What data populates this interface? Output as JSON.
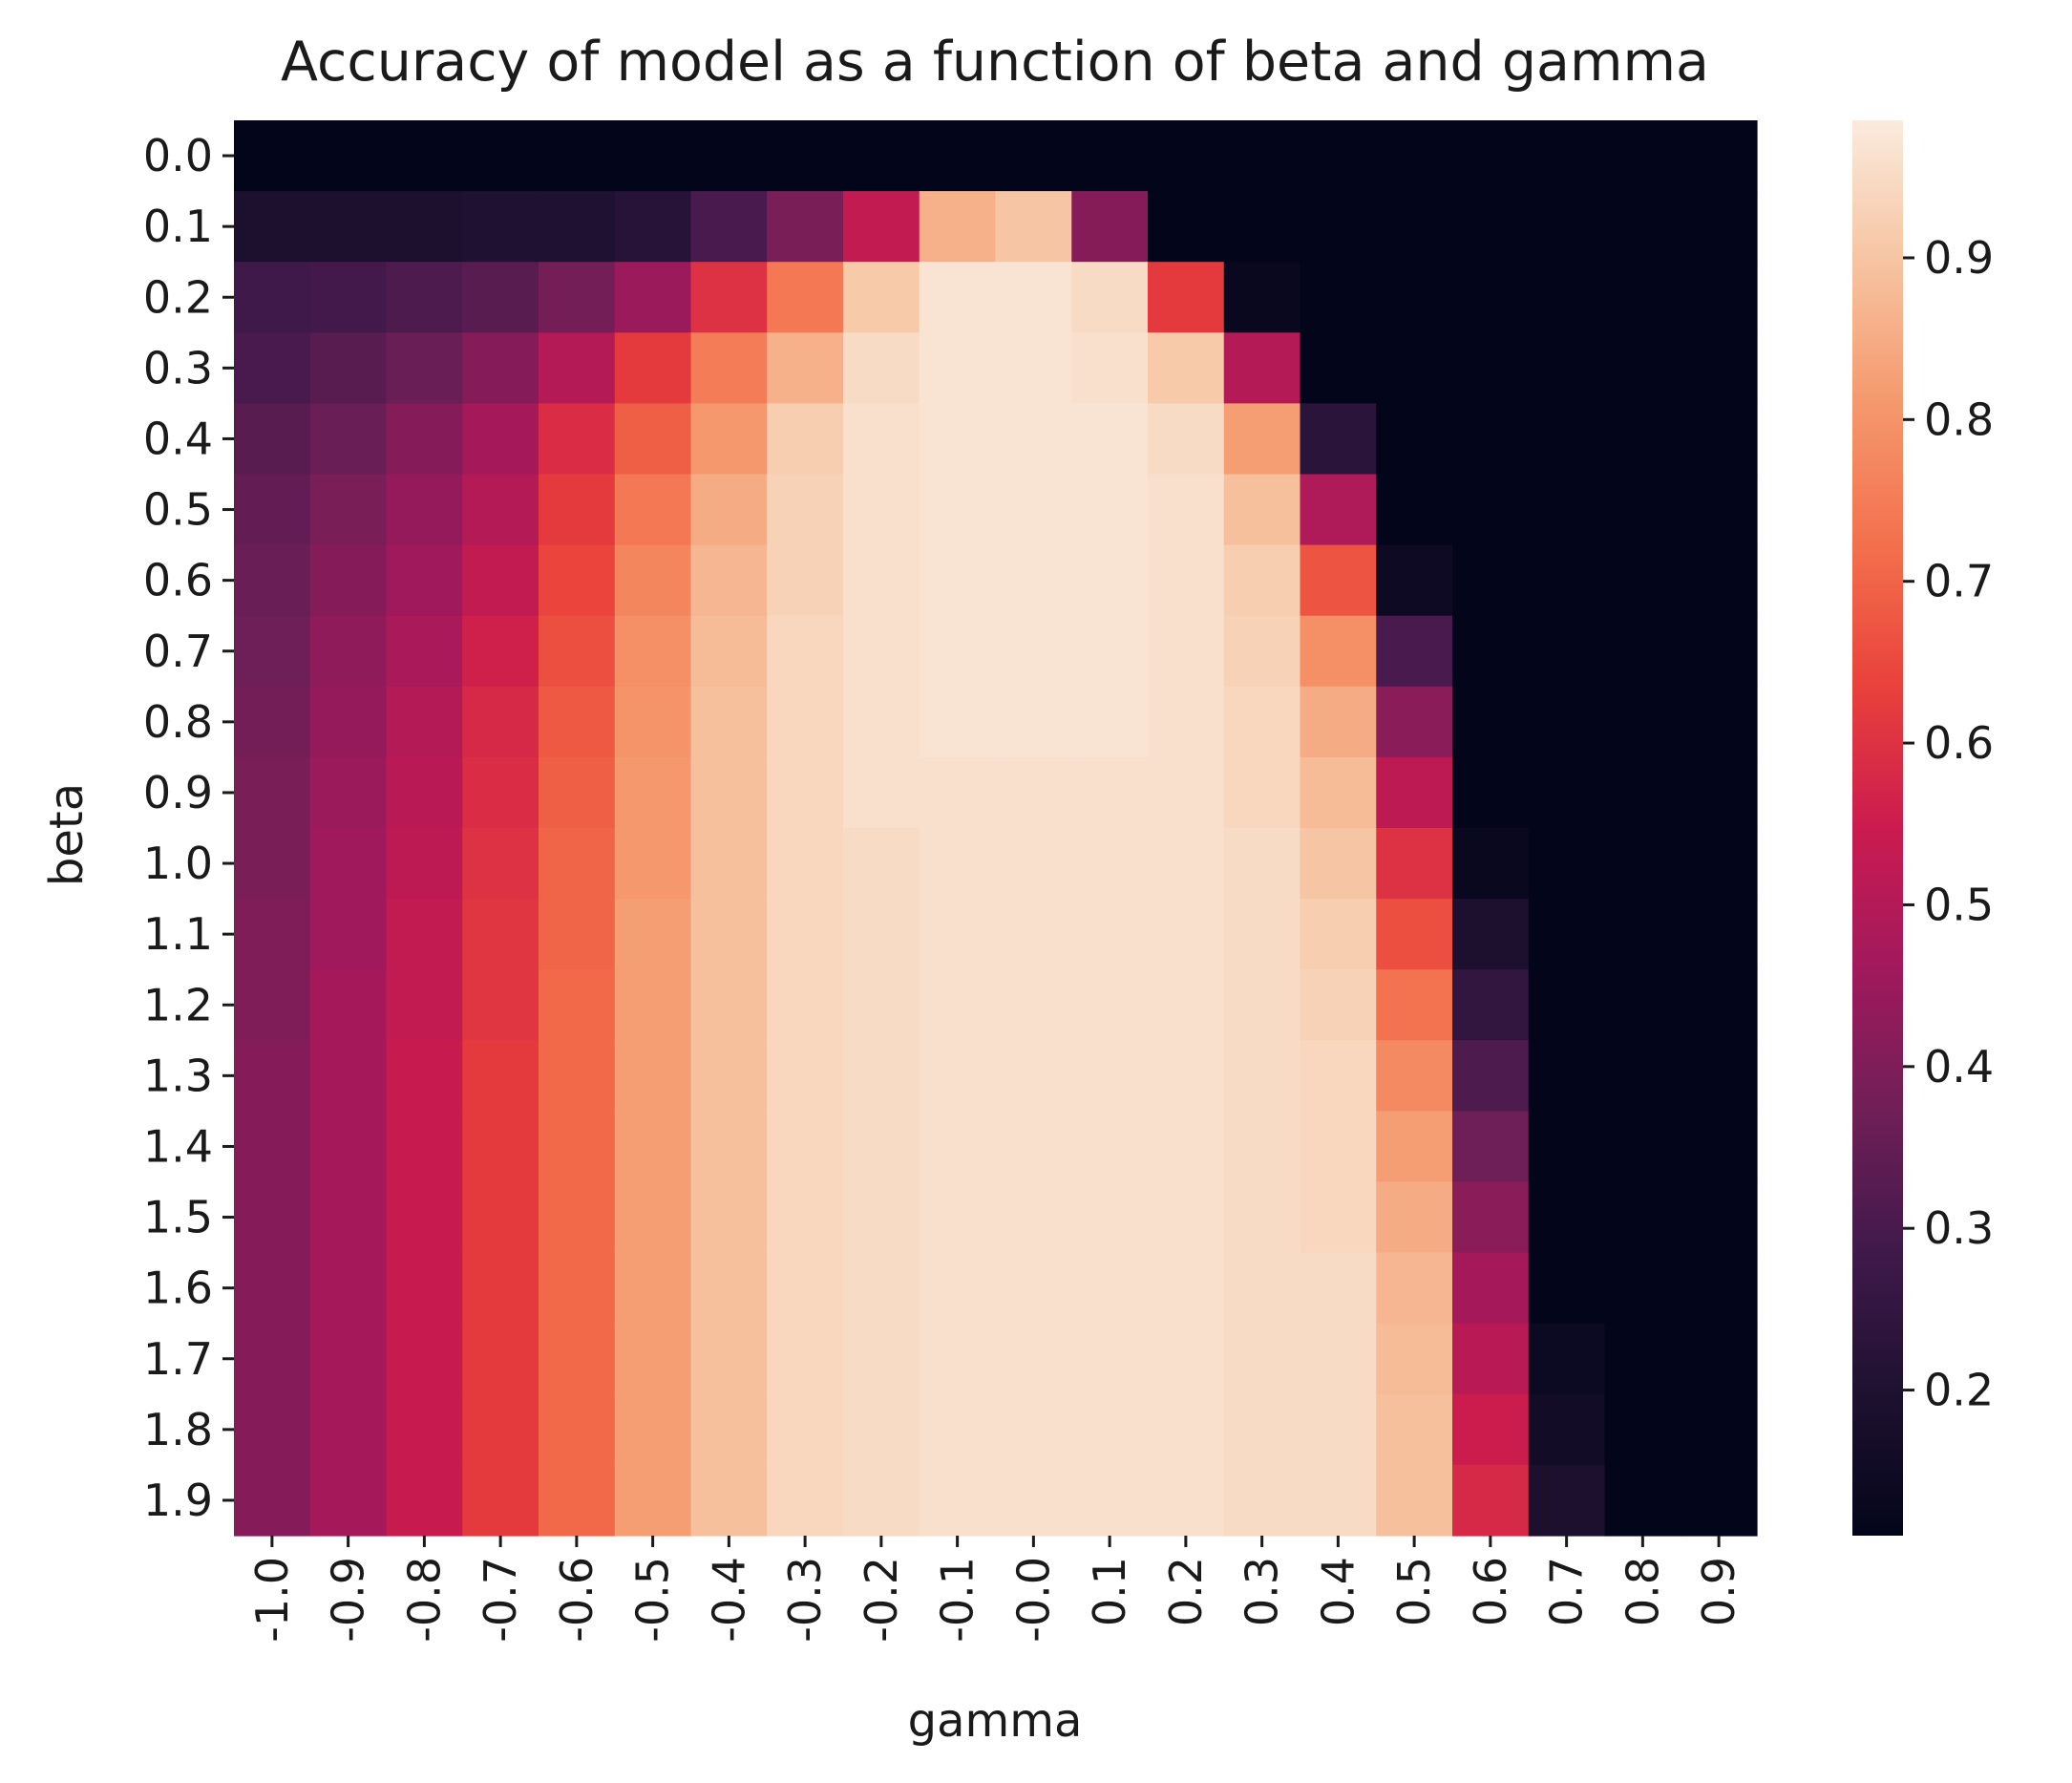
{
  "chart_data": {
    "type": "heatmap",
    "title": "Accuracy of model as a function of beta and gamma",
    "xlabel": "gamma",
    "ylabel": "beta",
    "x": [
      "-1.0",
      "-0.9",
      "-0.8",
      "-0.7",
      "-0.6",
      "-0.5",
      "-0.4",
      "-0.3",
      "-0.2",
      "-0.1",
      "-0.0",
      "0.1",
      "0.2",
      "0.3",
      "0.4",
      "0.5",
      "0.6",
      "0.7",
      "0.8",
      "0.9"
    ],
    "y": [
      "0.0",
      "0.1",
      "0.2",
      "0.3",
      "0.4",
      "0.5",
      "0.6",
      "0.7",
      "0.8",
      "0.9",
      "1.0",
      "1.1",
      "1.2",
      "1.3",
      "1.4",
      "1.5",
      "1.6",
      "1.7",
      "1.8",
      "1.9"
    ],
    "values": [
      [
        0.11,
        0.11,
        0.11,
        0.11,
        0.11,
        0.11,
        0.11,
        0.11,
        0.11,
        0.11,
        0.11,
        0.11,
        0.11,
        0.11,
        0.11,
        0.11,
        0.11,
        0.11,
        0.11,
        0.11
      ],
      [
        0.19,
        0.19,
        0.19,
        0.2,
        0.2,
        0.22,
        0.3,
        0.39,
        0.53,
        0.86,
        0.9,
        0.41,
        0.11,
        0.11,
        0.11,
        0.11,
        0.11,
        0.11,
        0.11,
        0.11
      ],
      [
        0.28,
        0.29,
        0.31,
        0.33,
        0.38,
        0.45,
        0.6,
        0.74,
        0.91,
        0.97,
        0.97,
        0.95,
        0.62,
        0.13,
        0.11,
        0.11,
        0.11,
        0.11,
        0.11,
        0.11
      ],
      [
        0.3,
        0.33,
        0.36,
        0.41,
        0.5,
        0.62,
        0.75,
        0.86,
        0.95,
        0.97,
        0.97,
        0.96,
        0.91,
        0.5,
        0.11,
        0.11,
        0.11,
        0.11,
        0.11,
        0.11
      ],
      [
        0.33,
        0.36,
        0.41,
        0.47,
        0.59,
        0.69,
        0.81,
        0.92,
        0.96,
        0.97,
        0.97,
        0.97,
        0.95,
        0.82,
        0.23,
        0.11,
        0.11,
        0.11,
        0.11,
        0.11
      ],
      [
        0.35,
        0.39,
        0.44,
        0.5,
        0.62,
        0.74,
        0.85,
        0.93,
        0.96,
        0.97,
        0.97,
        0.97,
        0.96,
        0.89,
        0.49,
        0.11,
        0.11,
        0.11,
        0.11,
        0.11
      ],
      [
        0.36,
        0.41,
        0.46,
        0.53,
        0.64,
        0.77,
        0.87,
        0.93,
        0.96,
        0.97,
        0.97,
        0.97,
        0.96,
        0.92,
        0.67,
        0.15,
        0.11,
        0.11,
        0.11,
        0.11
      ],
      [
        0.37,
        0.43,
        0.48,
        0.56,
        0.66,
        0.79,
        0.88,
        0.94,
        0.96,
        0.97,
        0.97,
        0.97,
        0.96,
        0.93,
        0.79,
        0.3,
        0.11,
        0.11,
        0.11,
        0.11
      ],
      [
        0.38,
        0.44,
        0.5,
        0.58,
        0.68,
        0.8,
        0.89,
        0.94,
        0.96,
        0.97,
        0.97,
        0.97,
        0.96,
        0.94,
        0.85,
        0.42,
        0.11,
        0.11,
        0.11,
        0.11
      ],
      [
        0.39,
        0.45,
        0.51,
        0.59,
        0.69,
        0.81,
        0.89,
        0.94,
        0.96,
        0.96,
        0.96,
        0.96,
        0.96,
        0.94,
        0.88,
        0.52,
        0.11,
        0.11,
        0.11,
        0.11
      ],
      [
        0.39,
        0.46,
        0.52,
        0.6,
        0.7,
        0.81,
        0.89,
        0.94,
        0.95,
        0.96,
        0.96,
        0.96,
        0.96,
        0.95,
        0.9,
        0.6,
        0.13,
        0.11,
        0.11,
        0.11
      ],
      [
        0.4,
        0.46,
        0.53,
        0.61,
        0.7,
        0.82,
        0.89,
        0.94,
        0.95,
        0.96,
        0.96,
        0.96,
        0.96,
        0.95,
        0.92,
        0.66,
        0.19,
        0.11,
        0.11,
        0.11
      ],
      [
        0.4,
        0.47,
        0.53,
        0.61,
        0.71,
        0.82,
        0.89,
        0.94,
        0.95,
        0.96,
        0.96,
        0.96,
        0.96,
        0.95,
        0.93,
        0.73,
        0.25,
        0.11,
        0.11,
        0.11
      ],
      [
        0.41,
        0.47,
        0.54,
        0.62,
        0.71,
        0.82,
        0.89,
        0.94,
        0.95,
        0.96,
        0.96,
        0.96,
        0.96,
        0.95,
        0.94,
        0.78,
        0.31,
        0.11,
        0.11,
        0.11
      ],
      [
        0.41,
        0.47,
        0.54,
        0.62,
        0.71,
        0.82,
        0.89,
        0.94,
        0.95,
        0.96,
        0.96,
        0.96,
        0.96,
        0.95,
        0.94,
        0.82,
        0.37,
        0.11,
        0.11,
        0.11
      ],
      [
        0.41,
        0.47,
        0.54,
        0.62,
        0.71,
        0.82,
        0.89,
        0.94,
        0.95,
        0.96,
        0.96,
        0.96,
        0.96,
        0.95,
        0.94,
        0.85,
        0.42,
        0.11,
        0.11,
        0.11
      ],
      [
        0.41,
        0.47,
        0.54,
        0.62,
        0.71,
        0.82,
        0.89,
        0.94,
        0.95,
        0.96,
        0.96,
        0.96,
        0.96,
        0.95,
        0.95,
        0.87,
        0.47,
        0.11,
        0.11,
        0.11
      ],
      [
        0.41,
        0.47,
        0.54,
        0.62,
        0.71,
        0.82,
        0.89,
        0.94,
        0.95,
        0.96,
        0.96,
        0.96,
        0.96,
        0.95,
        0.95,
        0.88,
        0.51,
        0.14,
        0.11,
        0.11
      ],
      [
        0.41,
        0.47,
        0.54,
        0.62,
        0.71,
        0.82,
        0.89,
        0.94,
        0.95,
        0.96,
        0.96,
        0.96,
        0.96,
        0.95,
        0.95,
        0.89,
        0.55,
        0.16,
        0.11,
        0.11
      ],
      [
        0.41,
        0.47,
        0.54,
        0.62,
        0.71,
        0.82,
        0.89,
        0.94,
        0.95,
        0.96,
        0.96,
        0.96,
        0.96,
        0.95,
        0.95,
        0.89,
        0.58,
        0.19,
        0.11,
        0.11
      ]
    ],
    "colorbar": {
      "ticks": [
        "0.2",
        "0.3",
        "0.4",
        "0.5",
        "0.6",
        "0.7",
        "0.8",
        "0.9"
      ],
      "range": [
        0.11,
        0.985
      ]
    },
    "colormap": "rocket",
    "grid": false,
    "legend": "colorbar-right"
  }
}
